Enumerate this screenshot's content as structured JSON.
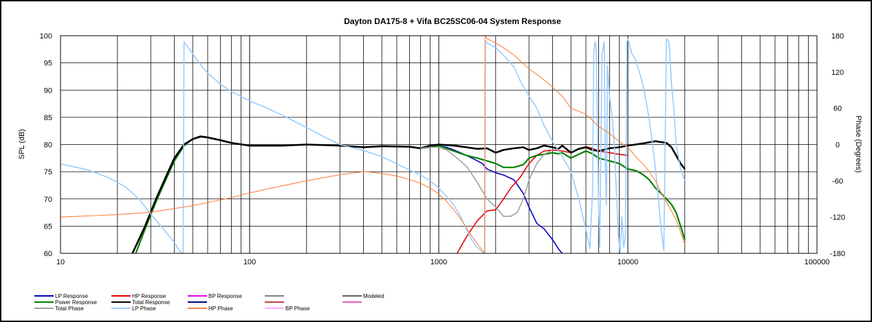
{
  "chart_data": {
    "type": "line",
    "title": "Dayton DA175-8  + Vifa BC25SC06-04      System Response",
    "xscale": "log",
    "xlim": [
      10,
      100000
    ],
    "x_ticks": [
      "10",
      "100",
      "1000",
      "10000",
      "100000"
    ],
    "ylabel_left": "SPL (dB)",
    "ylim_left": [
      60,
      100
    ],
    "y_ticks_left": [
      "60",
      "65",
      "70",
      "75",
      "80",
      "85",
      "90",
      "95",
      "100"
    ],
    "ylabel_right": "Phase (Degrees)",
    "ylim_right": [
      -180,
      180
    ],
    "y_ticks_right": [
      "-180",
      "-120",
      "-60",
      "0",
      "60",
      "120",
      "180"
    ],
    "grid": true,
    "legend_position": "bottom",
    "legend": [
      {
        "name": "LP Response",
        "color": "#0000c0"
      },
      {
        "name": "HP Response",
        "color": "#e00000"
      },
      {
        "name": "BP Response",
        "color": "#e000e0"
      },
      {
        "name": "",
        "color": "#808080"
      },
      {
        "name": "Modeled",
        "color": "#606060"
      },
      {
        "name": "Power Response",
        "color": "#008000"
      },
      {
        "name": "Total Response",
        "color": "#000000"
      },
      {
        "name": "",
        "color": "#000080"
      },
      {
        "name": "",
        "color": "#c04040"
      },
      {
        "name": "",
        "color": "#e060c0"
      },
      {
        "name": "Total Phase",
        "color": "#a0a0a0"
      },
      {
        "name": "LP Phase",
        "color": "#99ccff"
      },
      {
        "name": "HP Phase",
        "color": "#ff8040"
      },
      {
        "name": "BP Phase",
        "color": "#ffaaff"
      }
    ],
    "series": [
      {
        "name": "LP Response",
        "axis": "left",
        "color": "#0000c0",
        "width": 1.6,
        "x": [
          24,
          28,
          32,
          36,
          40,
          45,
          50,
          55,
          60,
          70,
          80,
          100,
          150,
          200,
          300,
          400,
          500,
          700,
          800,
          900,
          1000,
          1100,
          1200,
          1300,
          1400,
          1500,
          1600,
          1700,
          1800,
          2000,
          2200,
          2500,
          2800,
          3000,
          3300,
          3600,
          4000,
          4300,
          4500
        ],
        "y": [
          60,
          65,
          70,
          74,
          77.5,
          80,
          81,
          81.4,
          81.3,
          80.8,
          80.3,
          79.8,
          79.8,
          80,
          79.8,
          79.5,
          79.7,
          79.6,
          79.3,
          79.5,
          79.8,
          79.5,
          79,
          78.5,
          78,
          77.5,
          77,
          76.5,
          75.5,
          74.8,
          74.4,
          73.5,
          71,
          68.5,
          65.5,
          64.5,
          62.5,
          60.8,
          60
        ]
      },
      {
        "name": "HP Response",
        "axis": "left",
        "color": "#e00000",
        "width": 1.6,
        "x": [
          1250,
          1400,
          1600,
          1800,
          2000,
          2200,
          2400,
          2700,
          3000,
          3300,
          3600,
          4000,
          4500,
          5000,
          5500,
          6000,
          6500,
          7000,
          8000,
          9000,
          10000
        ],
        "y": [
          60,
          63,
          66,
          67.8,
          68,
          70,
          72,
          74,
          76.5,
          78,
          78.8,
          79,
          78.8,
          78.5,
          79.2,
          79.6,
          79.3,
          78.8,
          78.5,
          78.2,
          78
        ]
      },
      {
        "name": "Power Response",
        "axis": "left",
        "color": "#008000",
        "width": 2.2,
        "x": [
          25,
          28,
          32,
          36,
          40,
          45,
          50,
          55,
          60,
          70,
          80,
          100,
          150,
          200,
          300,
          400,
          500,
          700,
          800,
          900,
          1000,
          1200,
          1400,
          1600,
          1800,
          2000,
          2200,
          2500,
          2800,
          3000,
          3300,
          3600,
          4000,
          4300,
          4500,
          5000,
          5500,
          6000,
          6500,
          7000,
          8000,
          9000,
          10000,
          11000,
          12000,
          13000,
          14000,
          15000,
          16000,
          17000,
          18000,
          19000,
          20000
        ],
        "y": [
          60,
          64.5,
          69.5,
          73.5,
          77,
          79.8,
          81,
          81.4,
          81.3,
          80.8,
          80.3,
          79.8,
          79.8,
          80,
          79.8,
          79.5,
          79.7,
          79.6,
          79.3,
          79.5,
          79.8,
          78.8,
          78,
          77.5,
          77,
          76.5,
          75.8,
          75.8,
          76.3,
          77.5,
          78,
          78.2,
          78.5,
          78.3,
          78.5,
          77.5,
          78.2,
          78.8,
          78.3,
          77.5,
          77,
          76.5,
          75.5,
          75.2,
          74.5,
          73.5,
          72,
          71,
          70,
          69,
          67.5,
          65,
          62.5
        ]
      },
      {
        "name": "Total Response",
        "axis": "left",
        "color": "#000000",
        "width": 2.6,
        "x": [
          24,
          28,
          32,
          36,
          40,
          45,
          50,
          55,
          60,
          70,
          80,
          100,
          150,
          200,
          300,
          400,
          500,
          700,
          800,
          900,
          1000,
          1200,
          1400,
          1600,
          1800,
          2000,
          2200,
          2500,
          2800,
          3000,
          3300,
          3600,
          4000,
          4300,
          4500,
          5000,
          5500,
          6000,
          6500,
          7000,
          8000,
          9000,
          10000,
          12000,
          14000,
          16000,
          17000,
          18000,
          19000,
          20000
        ],
        "y": [
          60,
          65,
          70,
          74,
          77.5,
          80,
          81,
          81.5,
          81.3,
          80.8,
          80.3,
          79.8,
          79.8,
          80,
          79.8,
          79.5,
          79.7,
          79.6,
          79.3,
          79.8,
          80,
          79.8,
          79.5,
          79.2,
          79.3,
          78.5,
          79,
          79.3,
          79.5,
          79,
          79.3,
          79.8,
          79.5,
          79.2,
          79.8,
          78.5,
          79.2,
          79.5,
          79,
          78.8,
          79.3,
          79.5,
          79.8,
          80.2,
          80.6,
          80.3,
          79.5,
          78,
          76.5,
          75.5
        ]
      },
      {
        "name": "Total Phase",
        "axis": "left",
        "color": "#a0a0a0",
        "width": 1.6,
        "x": [
          800,
          900,
          1000,
          1100,
          1200,
          1300,
          1400,
          1500,
          1600,
          1700,
          1800,
          2000,
          2200,
          2400,
          2600,
          2800,
          3000,
          3300,
          3600,
          4000
        ],
        "y": [
          79.3,
          79.5,
          79.5,
          79,
          78,
          77,
          76,
          74.5,
          73,
          71.5,
          70,
          68.5,
          66.8,
          66.8,
          67.5,
          70,
          73.5,
          76.5,
          78.2,
          79
        ]
      },
      {
        "name": "LP Phase",
        "axis": "right",
        "color": "#99ccff",
        "width": 1.6,
        "x": [
          10,
          14,
          18,
          22,
          26,
          30,
          35,
          40,
          43,
          44.5,
          45,
          50,
          55,
          60,
          70,
          80,
          100,
          120,
          150,
          200,
          250,
          300,
          400,
          500,
          600,
          700,
          800,
          900,
          1000,
          1100,
          1200,
          1300,
          1400,
          1500,
          1600,
          1700,
          1750,
          1760,
          1800,
          2000,
          2200,
          2500,
          2700,
          3000,
          3300,
          3600,
          4000,
          4500,
          5000,
          5500,
          6000,
          6300,
          6400,
          6500,
          6600,
          6700,
          6800,
          6900,
          7000,
          7100,
          7300,
          7500,
          7600,
          7700,
          7800,
          8000,
          8300,
          8500,
          8700,
          8900,
          9100,
          9300,
          9500,
          9700,
          9900,
          10000,
          10500,
          11000,
          11500,
          12000,
          12500,
          13000,
          14000,
          15000,
          15500,
          16000,
          16500,
          17000,
          17500,
          18000,
          19000,
          20000
        ],
        "y": [
          -32,
          -42,
          -55,
          -70,
          -90,
          -115,
          -140,
          -162,
          -178,
          -180,
          170,
          150,
          132,
          118,
          100,
          88,
          72,
          62,
          48,
          28,
          12,
          0,
          -10,
          -20,
          -32,
          -42,
          -50,
          -60,
          -72,
          -86,
          -100,
          -118,
          -140,
          -158,
          -170,
          -178,
          -180,
          172,
          168,
          160,
          148,
          128,
          105,
          80,
          60,
          32,
          5,
          -20,
          -45,
          -90,
          -140,
          -172,
          -120,
          -80,
          150,
          170,
          160,
          40,
          -100,
          -170,
          150,
          170,
          -30,
          -100,
          130,
          80,
          40,
          -10,
          -80,
          -150,
          -180,
          -120,
          -170,
          -150,
          170,
          175,
          150,
          140,
          120,
          100,
          70,
          40,
          -40,
          -140,
          -175,
          175,
          170,
          100,
          60,
          0,
          -40,
          -60
        ]
      },
      {
        "name": "HP Phase",
        "axis": "right",
        "color": "#ff8040",
        "width": 1.1,
        "x": [
          10,
          20,
          30,
          40,
          50,
          60,
          80,
          100,
          150,
          200,
          300,
          400,
          450,
          500,
          600,
          700,
          800,
          900,
          1000,
          1100,
          1200,
          1300,
          1400,
          1500,
          1600,
          1700,
          1750,
          1760,
          1800,
          2000,
          2200,
          2500,
          3000,
          3500,
          4000,
          4500,
          5000,
          5500,
          6000,
          6500,
          7000,
          8000,
          9000,
          10000,
          11000,
          12000,
          13000,
          14000,
          15000,
          16000,
          17000,
          18000,
          19000,
          20000
        ],
        "y": [
          -120,
          -116,
          -112,
          -106,
          -101,
          -96,
          -88,
          -80,
          -68,
          -60,
          -50,
          -45,
          -46,
          -48,
          -52,
          -58,
          -64,
          -72,
          -82,
          -94,
          -108,
          -122,
          -138,
          -152,
          -164,
          -175,
          -180,
          180,
          175,
          168,
          160,
          148,
          125,
          110,
          95,
          80,
          60,
          55,
          50,
          40,
          30,
          18,
          5,
          -5,
          -20,
          -32,
          -45,
          -60,
          -80,
          -95,
          -110,
          -125,
          -145,
          -165
        ]
      }
    ]
  }
}
